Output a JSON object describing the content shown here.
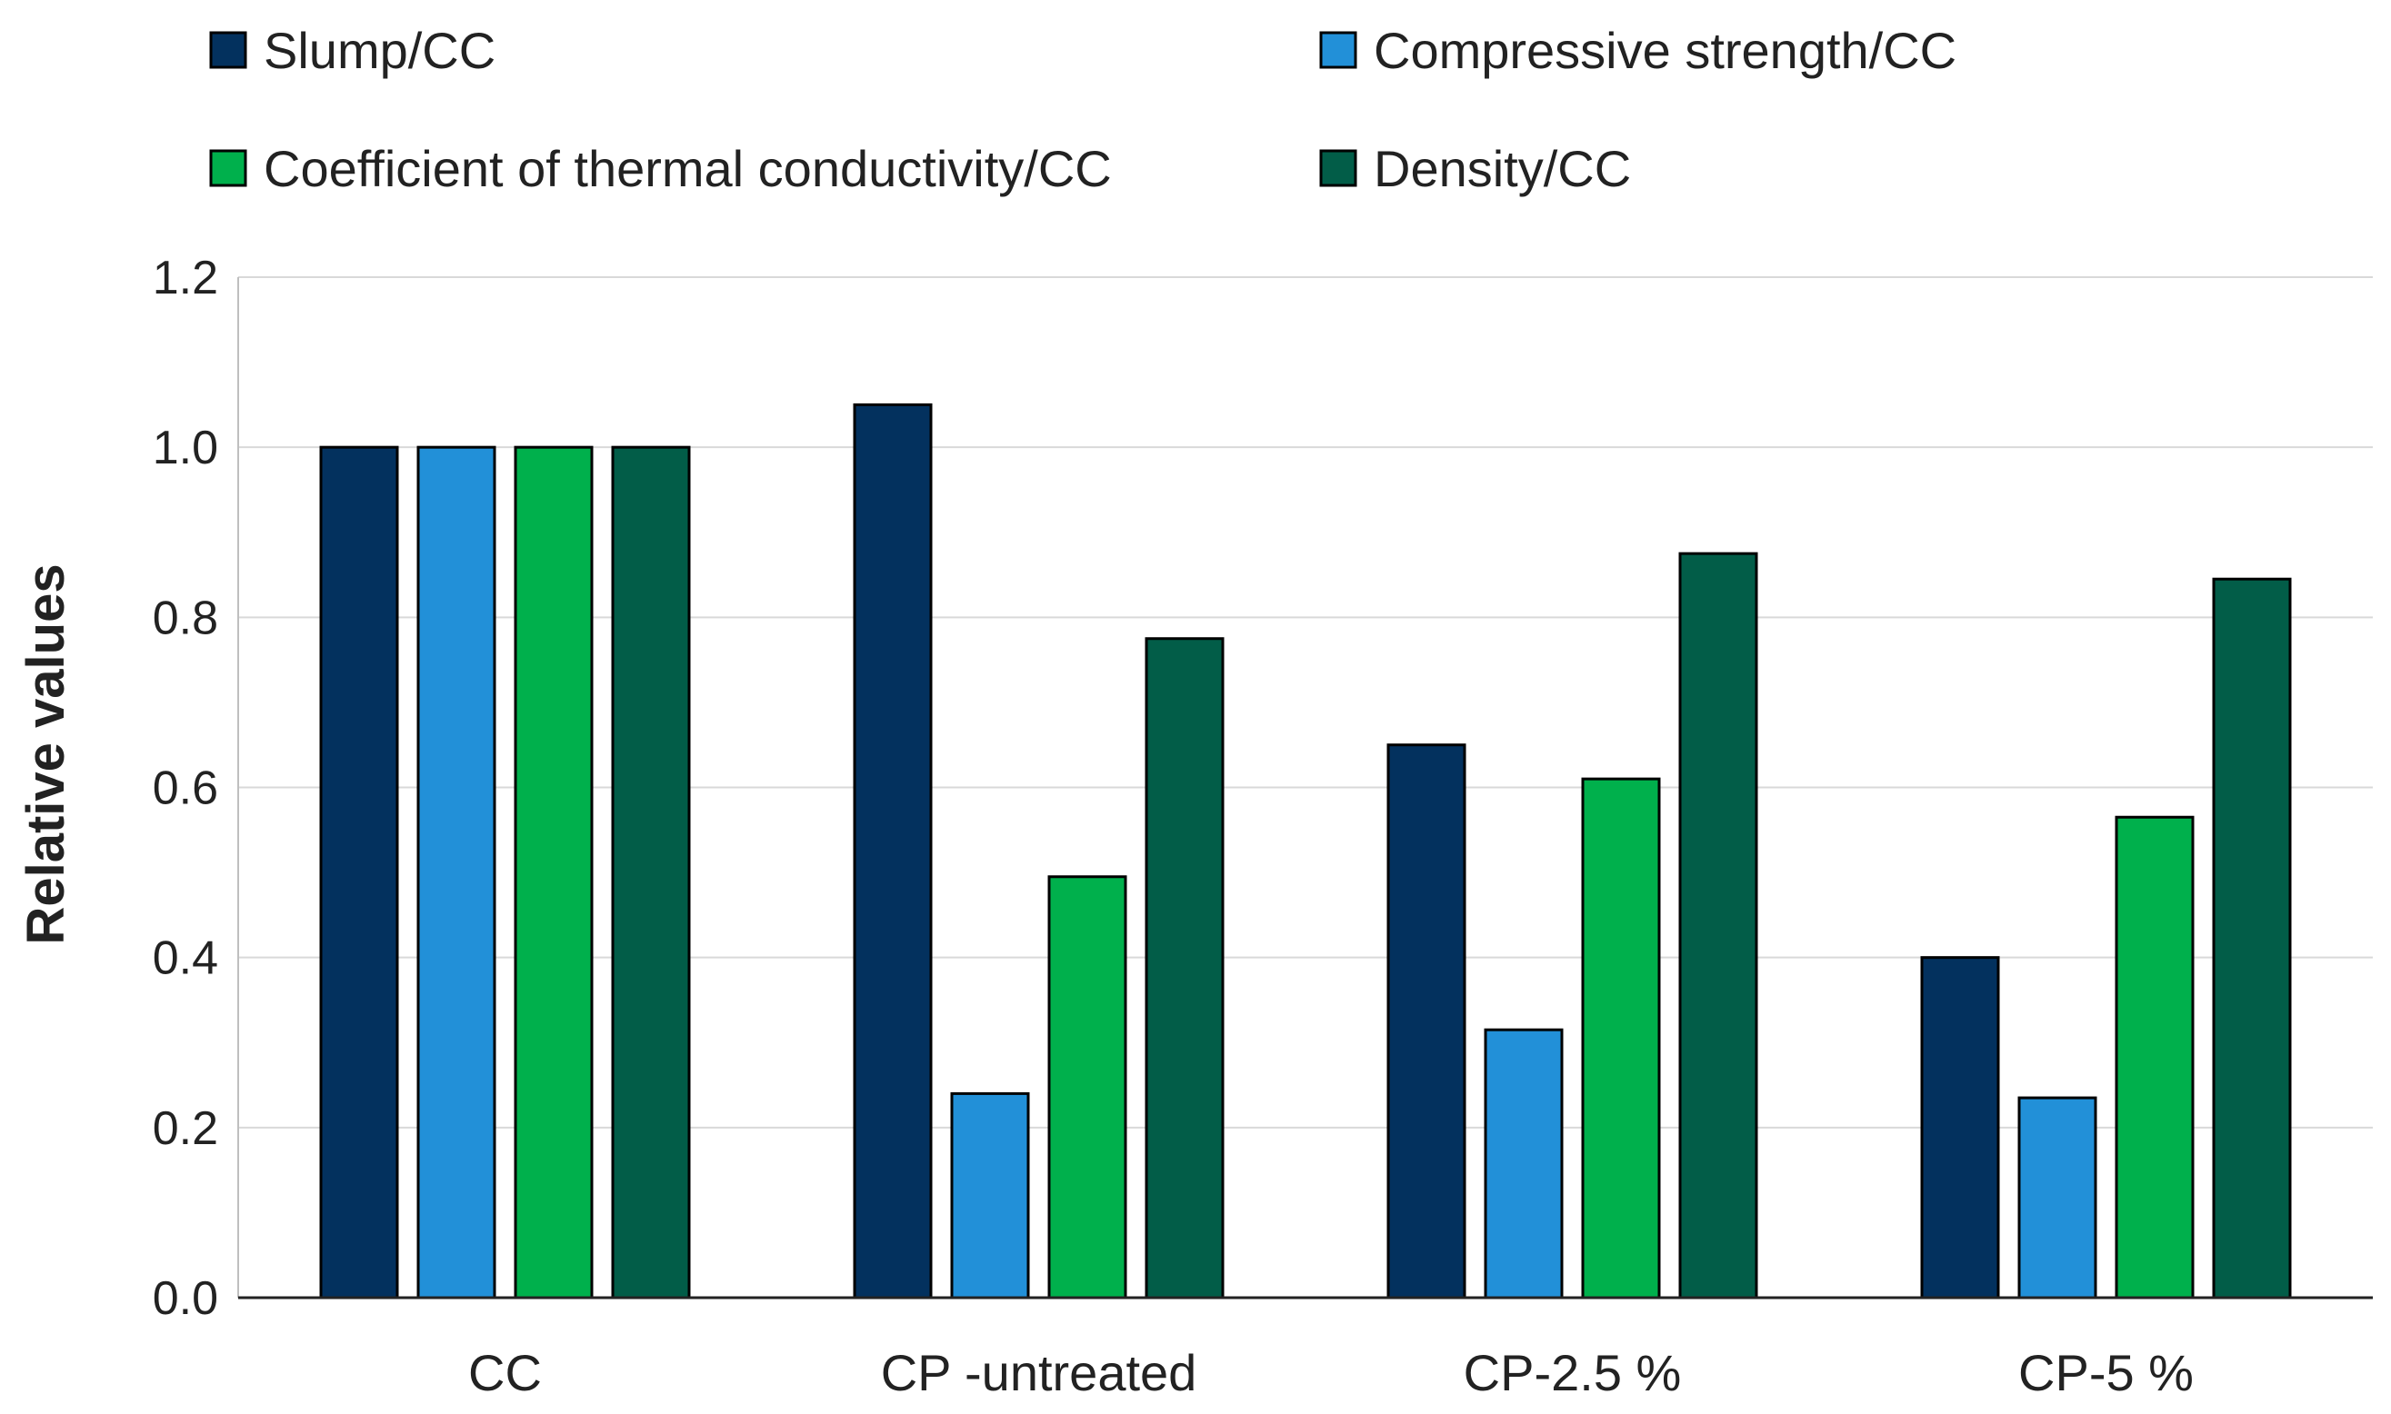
{
  "chart_data": {
    "type": "bar",
    "title": "",
    "xlabel": "",
    "ylabel": "Relative values",
    "ylim": [
      0,
      1.2
    ],
    "yticks": [
      "0.0",
      "0.2",
      "0.4",
      "0.6",
      "0.8",
      "1.0",
      "1.2"
    ],
    "grid": true,
    "legend_position": "top",
    "categories": [
      "CC",
      "CP -untreated",
      "CP-2.5 %",
      "CP-5 %"
    ],
    "series": [
      {
        "name": "Slump/CC",
        "color": "#03315e",
        "values": [
          1.0,
          1.05,
          0.65,
          0.4
        ]
      },
      {
        "name": "Compressive strength/CC",
        "color": "#2290d8",
        "values": [
          1.0,
          0.24,
          0.315,
          0.235
        ]
      },
      {
        "name": "Coefficient of thermal conductivity/CC",
        "color": "#00b04c",
        "values": [
          1.0,
          0.495,
          0.61,
          0.565
        ]
      },
      {
        "name": "Density/CC",
        "color": "#025d48",
        "values": [
          1.0,
          0.775,
          0.875,
          0.845
        ]
      }
    ]
  }
}
